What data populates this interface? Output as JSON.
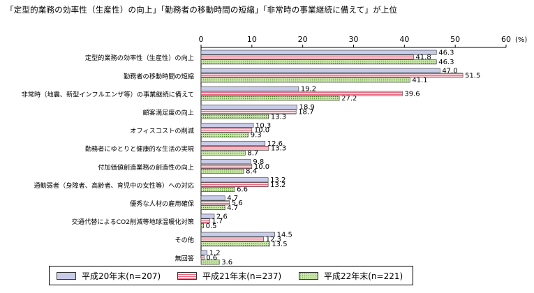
{
  "title": "「定型的業務の効率性（生産性）の向上」「勤務者の移動時間の短縮」「非常時の事業継続に備えて」が上位",
  "chart_data": {
    "type": "bar",
    "orientation": "horizontal",
    "title": "「定型的業務の効率性（生産性）の向上」「勤務者の移動時間の短縮」「非常時の事業継続に備えて」が上位",
    "unit_label": "(%)",
    "xlim": [
      0,
      60
    ],
    "ticks": [
      0,
      10,
      20,
      30,
      40,
      50,
      60
    ],
    "grid": false,
    "legend_position": "bottom",
    "categories": [
      "定型的業務の効率性（生産性）の向上",
      "勤務者の移動時間の短縮",
      "非常時（地震、新型インフルエンザ等）の事業継続に備えて",
      "顧客満足度の向上",
      "オフィスコストの削減",
      "勤務者にゆとりと健康的な生活の実現",
      "付加価値創造業務の創造性の向上",
      "通勤弱者（身障者、高齢者、育児中の女性等）への対応",
      "優秀な人材の雇用確保",
      "交通代替によるCO2削減等地球温暖化対策",
      "その他",
      "無回答"
    ],
    "series": [
      {
        "name": "平成20年末(n=207)",
        "color": "#c8cce8",
        "pattern": "solid",
        "values": [
          46.3,
          47.0,
          19.2,
          18.9,
          10.3,
          12.6,
          9.8,
          13.2,
          4.7,
          2.6,
          14.5,
          1.2
        ]
      },
      {
        "name": "平成21年末(n=237)",
        "color": "#f2a6b4",
        "pattern": "hstripe",
        "values": [
          41.8,
          51.5,
          39.6,
          18.7,
          10.0,
          13.3,
          10.0,
          13.2,
          5.6,
          1.7,
          12.3,
          0.6
        ]
      },
      {
        "name": "平成22年末(n=221)",
        "color": "#a8d080",
        "pattern": "dots",
        "values": [
          46.3,
          41.1,
          27.2,
          13.3,
          9.3,
          8.7,
          8.4,
          6.6,
          4.7,
          0.5,
          13.5,
          3.6
        ]
      }
    ]
  }
}
